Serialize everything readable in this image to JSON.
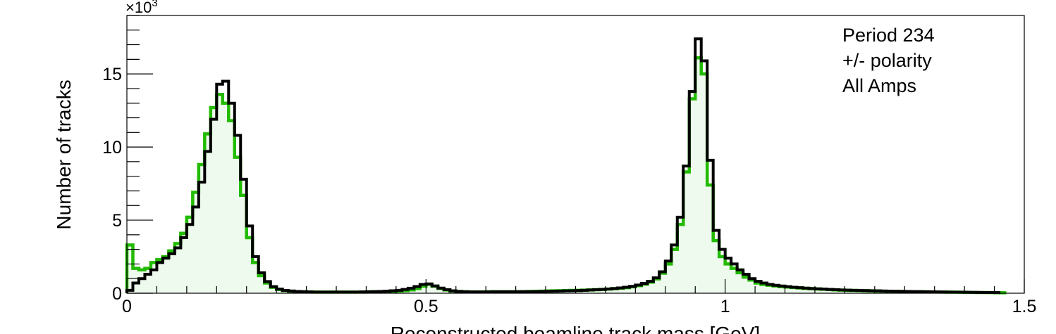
{
  "chart_data": {
    "type": "histogram",
    "xlabel": "Reconstructed beamline track mass [GeV]",
    "ylabel": "Number of tracks",
    "y_exponent_label": "×10",
    "y_exponent_power": "3",
    "xlim": [
      0,
      1.5
    ],
    "ylim": [
      0,
      19000
    ],
    "x_ticks": [
      {
        "value": 0,
        "label": "0"
      },
      {
        "value": 0.5,
        "label": "0.5"
      },
      {
        "value": 1,
        "label": "1"
      },
      {
        "value": 1.5,
        "label": "1.5"
      }
    ],
    "y_ticks": [
      {
        "value": 0,
        "label": "0"
      },
      {
        "value": 5000,
        "label": "5"
      },
      {
        "value": 10000,
        "label": "10"
      },
      {
        "value": 15000,
        "label": "15"
      }
    ],
    "grid": false,
    "legend_placement": "top-right",
    "annotation_lines": [
      "Period 234",
      "+/- polarity",
      "All Amps"
    ],
    "bin_width": 0.01,
    "x_start": 0,
    "series": [
      {
        "color": "#22bb00",
        "fill": "#eefaee",
        "values": [
          3300,
          1700,
          1600,
          1700,
          2100,
          2300,
          2500,
          2900,
          3400,
          4100,
          5200,
          6900,
          8800,
          10900,
          12700,
          13600,
          13000,
          11800,
          9300,
          6700,
          3800,
          2100,
          1200,
          700,
          400,
          250,
          180,
          140,
          110,
          100,
          90,
          80,
          80,
          80,
          80,
          80,
          80,
          80,
          80,
          80,
          90,
          100,
          100,
          110,
          130,
          150,
          180,
          230,
          320,
          480,
          600,
          480,
          330,
          220,
          150,
          120,
          100,
          90,
          90,
          90,
          100,
          100,
          100,
          100,
          100,
          110,
          110,
          120,
          130,
          140,
          150,
          160,
          170,
          180,
          190,
          200,
          210,
          220,
          240,
          260,
          280,
          310,
          340,
          380,
          440,
          520,
          620,
          760,
          980,
          1370,
          2000,
          3000,
          4700,
          8300,
          13300,
          16100,
          15000,
          7400,
          3600,
          2500,
          2000,
          1700,
          1400,
          1100,
          900,
          700,
          600,
          550,
          500,
          450,
          420,
          390,
          360,
          330,
          310,
          290,
          270,
          250,
          230,
          210,
          200,
          190,
          180,
          170,
          160,
          150,
          140,
          130,
          125,
          120,
          110,
          100,
          100,
          95,
          90,
          85,
          80,
          75,
          70,
          65,
          60,
          55,
          50,
          45,
          40,
          35,
          30
        ]
      },
      {
        "color": "#000000",
        "fill": "none",
        "values": [
          200,
          700,
          1000,
          1300,
          1600,
          2100,
          2400,
          2700,
          3100,
          3800,
          4700,
          5900,
          7600,
          9700,
          11900,
          14300,
          14500,
          13000,
          10800,
          7800,
          4600,
          2500,
          1400,
          800,
          450,
          280,
          190,
          150,
          120,
          100,
          90,
          80,
          80,
          80,
          80,
          80,
          80,
          80,
          80,
          90,
          100,
          110,
          120,
          140,
          170,
          200,
          260,
          340,
          460,
          600,
          640,
          500,
          350,
          240,
          160,
          120,
          100,
          90,
          90,
          90,
          90,
          100,
          100,
          100,
          100,
          100,
          110,
          110,
          110,
          120,
          130,
          140,
          150,
          160,
          170,
          180,
          200,
          220,
          240,
          260,
          290,
          320,
          360,
          410,
          470,
          560,
          670,
          810,
          1050,
          1470,
          2200,
          3300,
          5200,
          8700,
          13800,
          17400,
          15900,
          9100,
          4300,
          3000,
          2400,
          2000,
          1600,
          1300,
          1000,
          820,
          700,
          600,
          540,
          490,
          450,
          410,
          380,
          350,
          320,
          300,
          280,
          260,
          240,
          220,
          210,
          200,
          190,
          180,
          170,
          160,
          150,
          140,
          130,
          125,
          120,
          115,
          110,
          100,
          95,
          90,
          85,
          80,
          75,
          70,
          65,
          60,
          55,
          50,
          45,
          40
        ]
      }
    ]
  }
}
